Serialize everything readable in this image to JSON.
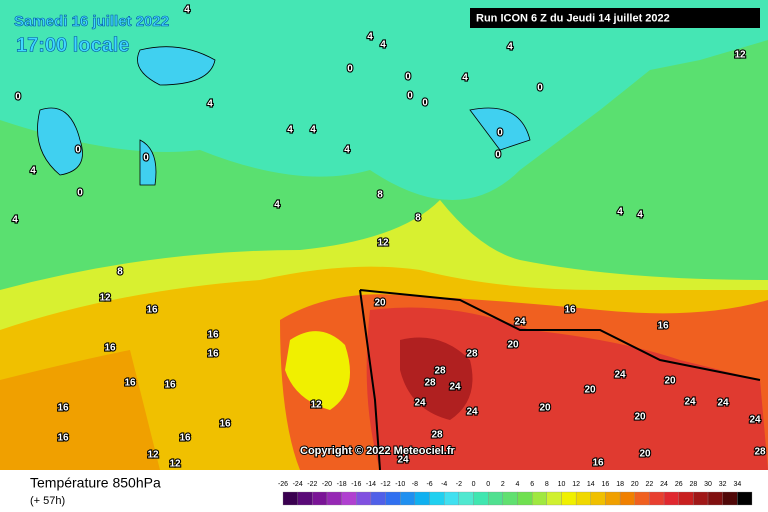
{
  "header": {
    "date": "Samedi 16 juillet 2022",
    "time": "17:00 locale",
    "run": "Run ICON 6 Z du Jeudi 14 juillet 2022",
    "copyright": "Copyright © 2022 Meteociel.fr"
  },
  "legend": {
    "title": "Température 850hPa",
    "subtitle": "(+ 57h)",
    "labels": [
      -26,
      -24,
      -22,
      -20,
      -18,
      -16,
      -14,
      -12,
      -10,
      -8,
      -6,
      -4,
      -2,
      0,
      0,
      2,
      4,
      6,
      8,
      10,
      12,
      14,
      16,
      18,
      20,
      22,
      24,
      26,
      28,
      30,
      32,
      34
    ],
    "colors": [
      "#3a0050",
      "#5a0a78",
      "#7a1496",
      "#9628b4",
      "#b040d0",
      "#8050e0",
      "#5060e8",
      "#3070f0",
      "#2090f0",
      "#10b0f0",
      "#20d0f0",
      "#40e0f0",
      "#50e8d0",
      "#40e6b0",
      "#50e090",
      "#60e070",
      "#70e050",
      "#a0e840",
      "#d0f030",
      "#f0f000",
      "#f0d800",
      "#f0c000",
      "#f0a000",
      "#f08000",
      "#f06020",
      "#e84030",
      "#e02830",
      "#c82020",
      "#a01818",
      "#801010",
      "#500808",
      "#000000"
    ]
  },
  "contour_labels": [
    4,
    4,
    4,
    4,
    12,
    0,
    4,
    0,
    0,
    0,
    4,
    0,
    0,
    4,
    4,
    4,
    0,
    0,
    0,
    0,
    4,
    0,
    8,
    4,
    4,
    8,
    4,
    4,
    12,
    8,
    12,
    16,
    20,
    16,
    16,
    24,
    20,
    28,
    16,
    16,
    16,
    28,
    28,
    24,
    24,
    20,
    16,
    16,
    12,
    24,
    20,
    16,
    24,
    20,
    24,
    24,
    16,
    28,
    24,
    12,
    12,
    16,
    16,
    20,
    16,
    20,
    28,
    24
  ]
}
